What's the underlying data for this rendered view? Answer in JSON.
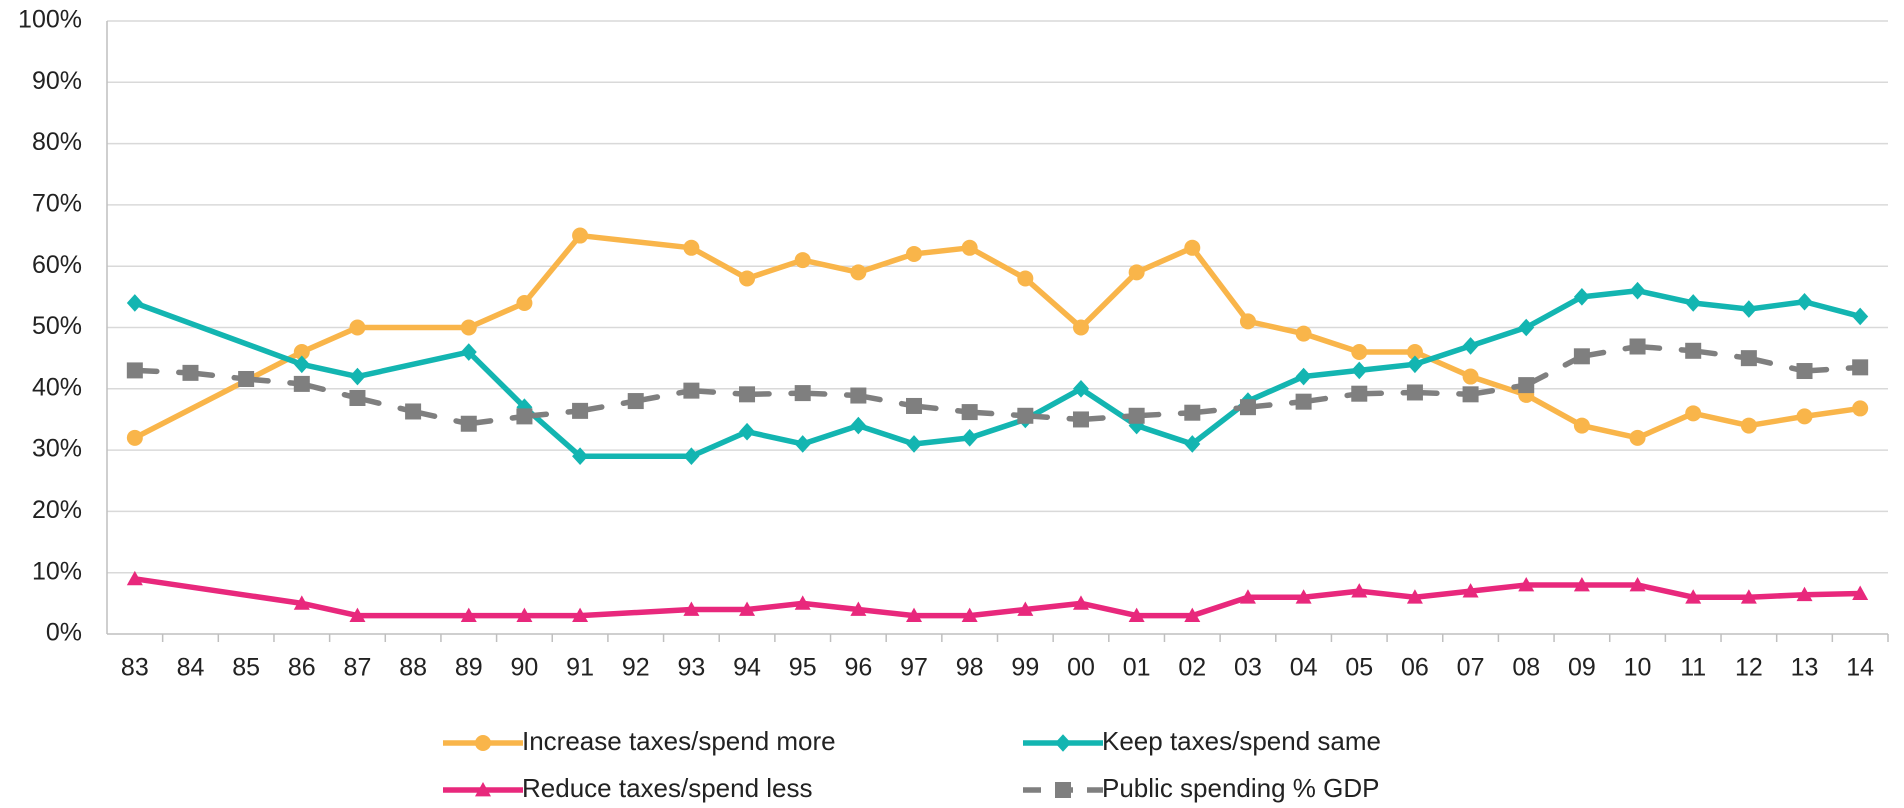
{
  "chart_data": {
    "type": "line",
    "categories": [
      "83",
      "84",
      "85",
      "86",
      "87",
      "88",
      "89",
      "90",
      "91",
      "92",
      "93",
      "94",
      "95",
      "96",
      "97",
      "98",
      "99",
      "00",
      "01",
      "02",
      "03",
      "04",
      "05",
      "06",
      "07",
      "08",
      "09",
      "10",
      "11",
      "12",
      "13",
      "14"
    ],
    "ylim": [
      0,
      1
    ],
    "yticks": [
      {
        "value": 0,
        "label": "0%"
      },
      {
        "value": 0.1,
        "label": "10%"
      },
      {
        "value": 0.2,
        "label": "20%"
      },
      {
        "value": 0.3,
        "label": "30%"
      },
      {
        "value": 0.4,
        "label": "40%"
      },
      {
        "value": 0.5,
        "label": "50%"
      },
      {
        "value": 0.6,
        "label": "60%"
      },
      {
        "value": 0.7,
        "label": "70%"
      },
      {
        "value": 0.8,
        "label": "80%"
      },
      {
        "value": 0.9,
        "label": "90%"
      },
      {
        "value": 1,
        "label": "100%"
      }
    ],
    "grid": true,
    "legend": "bottom",
    "series": [
      {
        "name": "Increase taxes/spend more",
        "color": "#f9b54a",
        "marker": "circle",
        "dashed": false,
        "values": [
          0.32,
          null,
          null,
          0.46,
          0.5,
          null,
          0.5,
          0.54,
          0.65,
          null,
          0.63,
          0.58,
          0.61,
          0.59,
          0.62,
          0.63,
          0.58,
          0.5,
          0.59,
          0.63,
          0.51,
          0.49,
          0.46,
          0.46,
          0.42,
          0.39,
          0.34,
          0.32,
          0.36,
          0.34,
          0.355,
          0.368
        ]
      },
      {
        "name": "Keep taxes/spend same",
        "color": "#13b5b1",
        "marker": "diamond",
        "dashed": false,
        "values": [
          0.54,
          null,
          null,
          0.44,
          0.42,
          null,
          0.46,
          0.37,
          0.29,
          null,
          0.29,
          0.33,
          0.31,
          0.34,
          0.31,
          0.32,
          0.35,
          0.4,
          0.34,
          0.31,
          0.38,
          0.42,
          0.43,
          0.44,
          0.47,
          0.5,
          0.55,
          0.56,
          0.54,
          0.53,
          0.542,
          0.518
        ]
      },
      {
        "name": "Reduce taxes/spend less",
        "color": "#e8287c",
        "marker": "triangle",
        "dashed": false,
        "values": [
          0.09,
          null,
          null,
          0.05,
          0.03,
          null,
          0.03,
          0.03,
          0.03,
          null,
          0.04,
          0.04,
          0.05,
          0.04,
          0.03,
          0.03,
          0.04,
          0.05,
          0.03,
          0.03,
          0.06,
          0.06,
          0.07,
          0.06,
          0.07,
          0.08,
          0.08,
          0.08,
          0.06,
          0.06,
          0.064,
          0.066
        ]
      },
      {
        "name": "Public spending % GDP",
        "color": "#7f7f7f",
        "marker": "square",
        "dashed": true,
        "values": [
          0.43,
          0.426,
          0.416,
          0.408,
          0.385,
          0.363,
          0.343,
          0.355,
          0.364,
          0.38,
          0.397,
          0.391,
          0.393,
          0.389,
          0.372,
          0.362,
          0.356,
          0.35,
          0.356,
          0.361,
          0.37,
          0.379,
          0.392,
          0.394,
          0.391,
          0.406,
          0.453,
          0.469,
          0.462,
          0.45,
          0.429,
          0.435
        ]
      }
    ]
  }
}
